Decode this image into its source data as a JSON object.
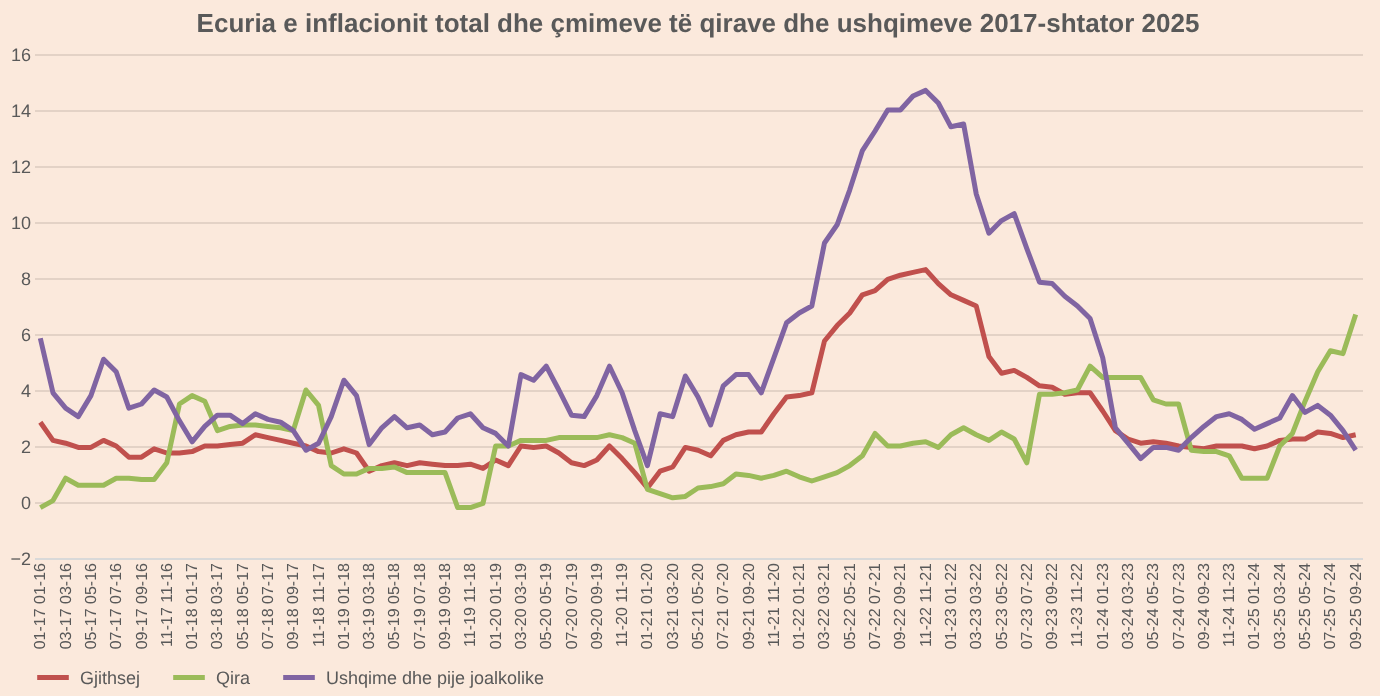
{
  "chart_data": {
    "type": "line",
    "title": "Ecuria e inflacionit total dhe çmimeve të qirave dhe ushqimeve 2017-shtator 2025",
    "categories": [
      "01-17 01-16",
      null,
      "03-17 03-16",
      null,
      "05-17 05-16",
      null,
      "07-17 07-16",
      null,
      "09-17 09-16",
      null,
      "11-17 11-16",
      null,
      "01-18 01-17",
      null,
      "03-18 03-17",
      null,
      "05-18 05-17",
      null,
      "07-18 07-17",
      null,
      "09-18 09-17",
      null,
      "11-18 11-17",
      null,
      "01-19 01-18",
      null,
      "03-19 03-18",
      null,
      "05-19 05-18",
      null,
      "07-19 07-18",
      null,
      "09-19 09-18",
      null,
      "11-19 11-18",
      null,
      "01-20 01-19",
      null,
      "03-20 03-19",
      null,
      "05-20 05-19",
      null,
      "07-20 07-19",
      null,
      "09-20 09-19",
      null,
      "11-20 11-19",
      null,
      "01-21 01-20",
      null,
      "03-21 03-20",
      null,
      "05-21 05-20",
      null,
      "07-21 07-20",
      null,
      "09-21 09-20",
      null,
      "11-21 11-20",
      null,
      "01-22 01-21",
      null,
      "03-22 03-21",
      null,
      "05-22 05-21",
      null,
      "07-22 07-21",
      null,
      "09-22 09-21",
      null,
      "11-22 11-21",
      null,
      "01-23 01-22",
      null,
      "03-23 03-22",
      null,
      "05-23 05-22",
      null,
      "07-23 07-22",
      null,
      "09-23 09-22",
      null,
      "11-23 11-22",
      null,
      "01-24 01-23",
      null,
      "03-24 03-23",
      null,
      "05-24 05-23",
      null,
      "07-24 07-23",
      null,
      "09-24 09-23",
      null,
      "11-24 11-23",
      null,
      "01-25 01-24",
      null,
      "03-25 03-24",
      null,
      "05-25 05-24",
      null,
      "07-25 07-24",
      null,
      "09-25 09-24"
    ],
    "ylim": [
      -2,
      16
    ],
    "yticks": [
      -2,
      0,
      2,
      4,
      6,
      8,
      10,
      12,
      14,
      16
    ],
    "grid": "y",
    "legend": "bottom",
    "series": [
      {
        "name": "Gjithsej",
        "color": "#c0504d",
        "values": [
          2.85,
          2.2,
          2.1,
          1.95,
          1.95,
          2.2,
          2.0,
          1.6,
          1.6,
          1.9,
          1.75,
          1.75,
          1.8,
          2.0,
          2.0,
          2.05,
          2.1,
          2.4,
          2.3,
          2.2,
          2.1,
          2.0,
          1.8,
          1.75,
          1.9,
          1.75,
          1.1,
          1.3,
          1.4,
          1.3,
          1.4,
          1.35,
          1.3,
          1.3,
          1.35,
          1.2,
          1.5,
          1.3,
          2.0,
          1.95,
          2.0,
          1.75,
          1.4,
          1.3,
          1.5,
          2.0,
          1.55,
          1.05,
          0.5,
          1.1,
          1.25,
          1.95,
          1.85,
          1.65,
          2.2,
          2.4,
          2.5,
          2.5,
          3.15,
          3.75,
          3.8,
          3.9,
          5.75,
          6.3,
          6.75,
          7.4,
          7.55,
          7.95,
          8.1,
          8.2,
          8.3,
          7.8,
          7.4,
          7.2,
          7.0,
          5.2,
          4.6,
          4.7,
          4.45,
          4.15,
          4.1,
          3.85,
          3.9,
          3.9,
          3.25,
          2.55,
          2.25,
          2.1,
          2.15,
          2.1,
          2.0,
          1.95,
          1.9,
          2.0,
          2.0,
          2.0,
          1.9,
          2.0,
          2.2,
          2.25,
          2.25,
          2.5,
          2.45,
          2.3,
          2.4
        ]
      },
      {
        "name": "Qira",
        "color": "#9bbb59",
        "values": [
          -0.2,
          0.05,
          0.85,
          0.6,
          0.6,
          0.6,
          0.85,
          0.85,
          0.8,
          0.8,
          1.4,
          3.5,
          3.8,
          3.6,
          2.55,
          2.7,
          2.75,
          2.75,
          2.7,
          2.65,
          2.55,
          4.0,
          3.45,
          1.3,
          1.0,
          1.0,
          1.2,
          1.2,
          1.25,
          1.05,
          1.05,
          1.05,
          1.05,
          -0.2,
          -0.2,
          -0.05,
          2.0,
          2.0,
          2.2,
          2.2,
          2.2,
          2.3,
          2.3,
          2.3,
          2.3,
          2.4,
          2.3,
          2.1,
          0.45,
          0.3,
          0.15,
          0.2,
          0.5,
          0.55,
          0.65,
          1.0,
          0.95,
          0.85,
          0.95,
          1.1,
          0.9,
          0.75,
          0.9,
          1.05,
          1.3,
          1.65,
          2.45,
          2.0,
          2.0,
          2.1,
          2.15,
          1.95,
          2.4,
          2.65,
          2.4,
          2.2,
          2.5,
          2.25,
          1.4,
          3.85,
          3.85,
          3.9,
          4.0,
          4.85,
          4.45,
          4.45,
          4.45,
          4.45,
          3.65,
          3.5,
          3.5,
          1.85,
          1.8,
          1.8,
          1.65,
          0.85,
          0.85,
          0.85,
          2.0,
          2.45,
          3.6,
          4.65,
          5.4,
          5.3,
          6.7
        ]
      },
      {
        "name": "Ushqime dhe pije joalkolike",
        "color": "#8064a2",
        "values": [
          5.85,
          3.9,
          3.35,
          3.05,
          3.8,
          5.1,
          4.65,
          3.35,
          3.5,
          4.0,
          3.75,
          2.9,
          2.15,
          2.7,
          3.1,
          3.1,
          2.8,
          3.15,
          2.95,
          2.85,
          2.55,
          1.85,
          2.1,
          3.05,
          4.35,
          3.8,
          2.05,
          2.65,
          3.05,
          2.65,
          2.75,
          2.4,
          2.5,
          3.0,
          3.15,
          2.65,
          2.45,
          2.0,
          4.55,
          4.35,
          4.85,
          4.0,
          3.1,
          3.05,
          3.8,
          4.85,
          3.9,
          2.55,
          1.3,
          3.15,
          3.05,
          4.5,
          3.75,
          2.75,
          4.15,
          4.55,
          4.55,
          3.9,
          5.15,
          6.4,
          6.75,
          7.0,
          9.25,
          9.9,
          11.15,
          12.55,
          13.25,
          14.0,
          14.0,
          14.5,
          14.7,
          14.25,
          13.4,
          13.5,
          11.0,
          9.6,
          10.05,
          10.3,
          9.05,
          7.85,
          7.8,
          7.35,
          7.0,
          6.55,
          5.15,
          2.65,
          2.1,
          1.55,
          1.95,
          1.95,
          1.85,
          2.3,
          2.7,
          3.05,
          3.15,
          2.95,
          2.6,
          2.8,
          3.0,
          3.8,
          3.2,
          3.45,
          3.1,
          2.55,
          1.85
        ]
      }
    ]
  }
}
